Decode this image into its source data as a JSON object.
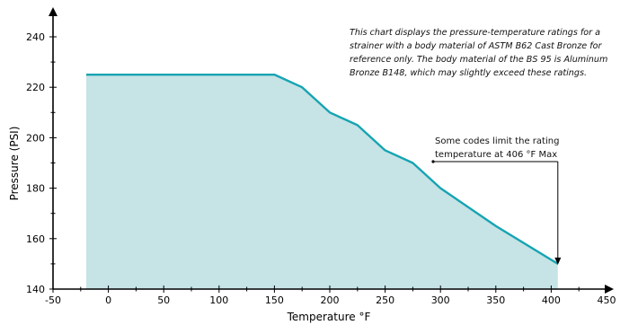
{
  "chart_data": {
    "type": "area",
    "title": "",
    "xlabel": "Temperature °F",
    "ylabel": "Pressure (PSI)",
    "xlim": [
      -50,
      450
    ],
    "ylim": [
      140,
      240
    ],
    "x_ticks": [
      -50,
      0,
      50,
      100,
      150,
      200,
      250,
      300,
      350,
      400,
      450
    ],
    "y_ticks": [
      140,
      160,
      180,
      200,
      220,
      240
    ],
    "series": [
      {
        "x": [
          -20,
          150,
          175,
          200,
          225,
          250,
          275,
          300,
          350,
          406
        ],
        "y": [
          225,
          225,
          220,
          210,
          205,
          195,
          190,
          180,
          165,
          150
        ]
      }
    ],
    "colors": {
      "line": "#16a4b2",
      "fill": "#c6e3e6"
    },
    "annotations": [
      {
        "id": "description",
        "lines": [
          "This chart displays the pressure-temperature ratings for a",
          "strainer with a body material of ASTM B62 Cast Bronze for",
          "reference only. The body material of the BS 95 is Aluminum",
          "Bronze B148, which may slightly exceed these ratings."
        ]
      },
      {
        "id": "rating-limit",
        "lines": [
          "Some codes limit the rating",
          "temperature at 406 °F Max"
        ],
        "target_x": 406
      }
    ]
  }
}
